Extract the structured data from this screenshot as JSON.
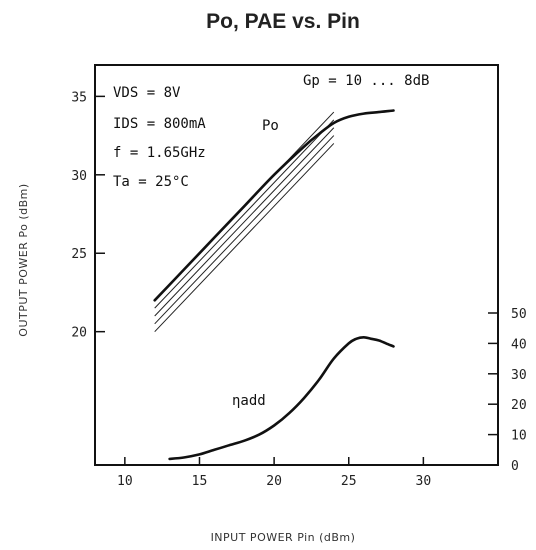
{
  "chart_data": {
    "type": "line",
    "title": "Po, PAE vs. Pin",
    "xlabel": "INPUT POWER Pin (dBm)",
    "ylabel_left": "OUTPUT POWER Po (dBm)",
    "xlim": [
      8,
      35
    ],
    "ylim_left": [
      11.5,
      37
    ],
    "ylim_right": [
      0,
      50
    ],
    "x_ticks": [
      10,
      15,
      20,
      25,
      30
    ],
    "y_ticks_left": [
      20,
      25,
      30,
      35
    ],
    "y_ticks_right": [
      0,
      10,
      20,
      30,
      40,
      50
    ],
    "grid": false,
    "annotations": {
      "vds": "VDS = 8V",
      "ids": "IDS = 800mA",
      "freq": "f = 1.65GHz",
      "ta": "Ta = 25°C",
      "gain_label": "Gp = 10 ... 8dB",
      "po_label": "Po",
      "eta_label": "ηadd"
    },
    "gain_lines": {
      "gains_db": [
        10,
        9.5,
        9,
        8.5,
        8
      ],
      "x_start": 12,
      "x_end": 24
    },
    "series": [
      {
        "name": "Po",
        "axis": "left",
        "x": [
          12,
          14,
          16,
          18,
          20,
          22,
          23,
          24,
          25,
          26,
          27,
          28
        ],
        "y": [
          22,
          24,
          26,
          28,
          30,
          31.8,
          32.6,
          33.3,
          33.7,
          33.9,
          34.0,
          34.1
        ]
      },
      {
        "name": "ηadd",
        "axis": "right",
        "x": [
          13,
          14,
          15,
          16,
          17,
          18,
          19,
          20,
          21,
          22,
          23,
          24,
          25,
          25.5,
          26,
          26.5,
          27,
          27.5,
          28
        ],
        "y": [
          2,
          2.5,
          3.5,
          5,
          6.5,
          8,
          10,
          13,
          17,
          22,
          28,
          35,
          40,
          41.5,
          42,
          41.5,
          41,
          40,
          39
        ]
      }
    ]
  }
}
